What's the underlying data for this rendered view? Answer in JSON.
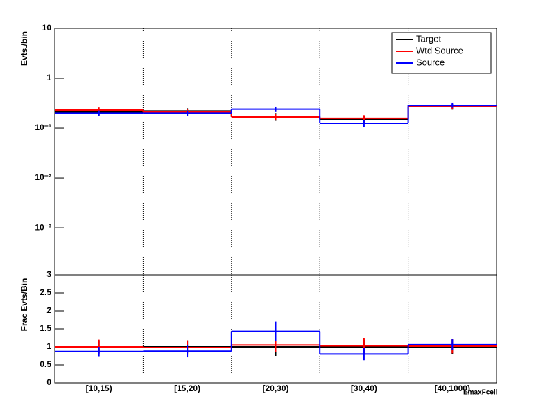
{
  "chart_data": [
    {
      "type": "step",
      "ylabel": "Evts./bin",
      "log": true,
      "ylim": [
        0.000114,
        10
      ],
      "yticks": [
        10,
        1,
        {
          "value": 0.1,
          "label": "10⁻¹"
        },
        {
          "value": 0.01,
          "label": "10⁻²"
        },
        {
          "value": 0.001,
          "label": "10⁻³"
        }
      ],
      "grid": "x",
      "legend": "top-right",
      "series": [
        {
          "name": "Target",
          "color": "#000000",
          "values": [
            0.21,
            0.22,
            0.17,
            0.15,
            0.27
          ],
          "errors": [
            0.03,
            0.03,
            0.03,
            0.025,
            0.035
          ]
        },
        {
          "name": "Wtd Source",
          "color": "#ff0000",
          "values": [
            0.23,
            0.21,
            0.167,
            0.157,
            0.27
          ],
          "errors": [
            0.03,
            0.03,
            0.025,
            0.025,
            0.03
          ]
        },
        {
          "name": "Source",
          "color": "#0000ff",
          "values": [
            0.2,
            0.2,
            0.24,
            0.125,
            0.287
          ],
          "errors": [
            0.025,
            0.025,
            0.03,
            0.02,
            0.03
          ]
        }
      ]
    },
    {
      "type": "step",
      "ylabel": "Frac Evts/Bin",
      "xlabel": "EmaxFcell",
      "log": false,
      "ylim": [
        0,
        3
      ],
      "yticks": [
        0,
        0.5,
        1,
        1.5,
        2,
        2.5,
        3
      ],
      "grid": "x",
      "categories": [
        "[10,15)",
        "[15,20)",
        "[20,30)",
        "[30,40)",
        "[40,1000)"
      ],
      "series": [
        {
          "color": "#000000",
          "values": [
            1,
            1,
            1,
            1,
            1
          ],
          "errors": [
            0.18,
            0.18,
            0.25,
            0.2,
            0.2
          ]
        },
        {
          "color": "#ff0000",
          "values": [
            1,
            0.98,
            1.05,
            1.03,
            1.02
          ],
          "errors": [
            0.2,
            0.2,
            0.2,
            0.22,
            0.2
          ]
        },
        {
          "color": "#0000ff",
          "values": [
            0.87,
            0.88,
            1.43,
            0.8,
            1.06
          ],
          "errors": [
            0.13,
            0.17,
            0.27,
            0.17,
            0.15
          ]
        }
      ]
    }
  ]
}
